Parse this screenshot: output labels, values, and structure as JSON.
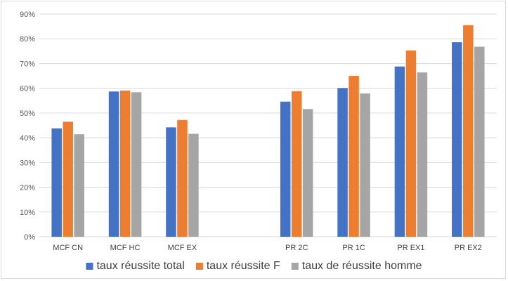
{
  "chart_data": {
    "type": "bar",
    "categories": [
      "MCF CN",
      "MCF HC",
      "MCF EX",
      "",
      "PR 2C",
      "PR 1C",
      "PR EX1",
      "PR EX2"
    ],
    "series": [
      {
        "name": "taux réussite total",
        "color": "#4472c4",
        "values": [
          43.8,
          58.7,
          44.2,
          null,
          54.6,
          60.1,
          68.8,
          78.6
        ]
      },
      {
        "name": "taux réussite F",
        "color": "#ed7d31",
        "values": [
          46.5,
          59.1,
          47.2,
          null,
          58.8,
          65.0,
          75.3,
          85.5
        ]
      },
      {
        "name": "taux de réussite homme",
        "color": "#a5a5a5",
        "values": [
          41.4,
          58.4,
          41.6,
          null,
          51.6,
          57.9,
          66.4,
          76.8
        ]
      }
    ],
    "yticks": [
      "0%",
      "10%",
      "20%",
      "30%",
      "40%",
      "50%",
      "60%",
      "70%",
      "80%",
      "90%"
    ],
    "ylim": [
      0,
      90
    ],
    "grid": true,
    "legend": "bottom",
    "title": "",
    "xlabel": "",
    "ylabel": ""
  }
}
